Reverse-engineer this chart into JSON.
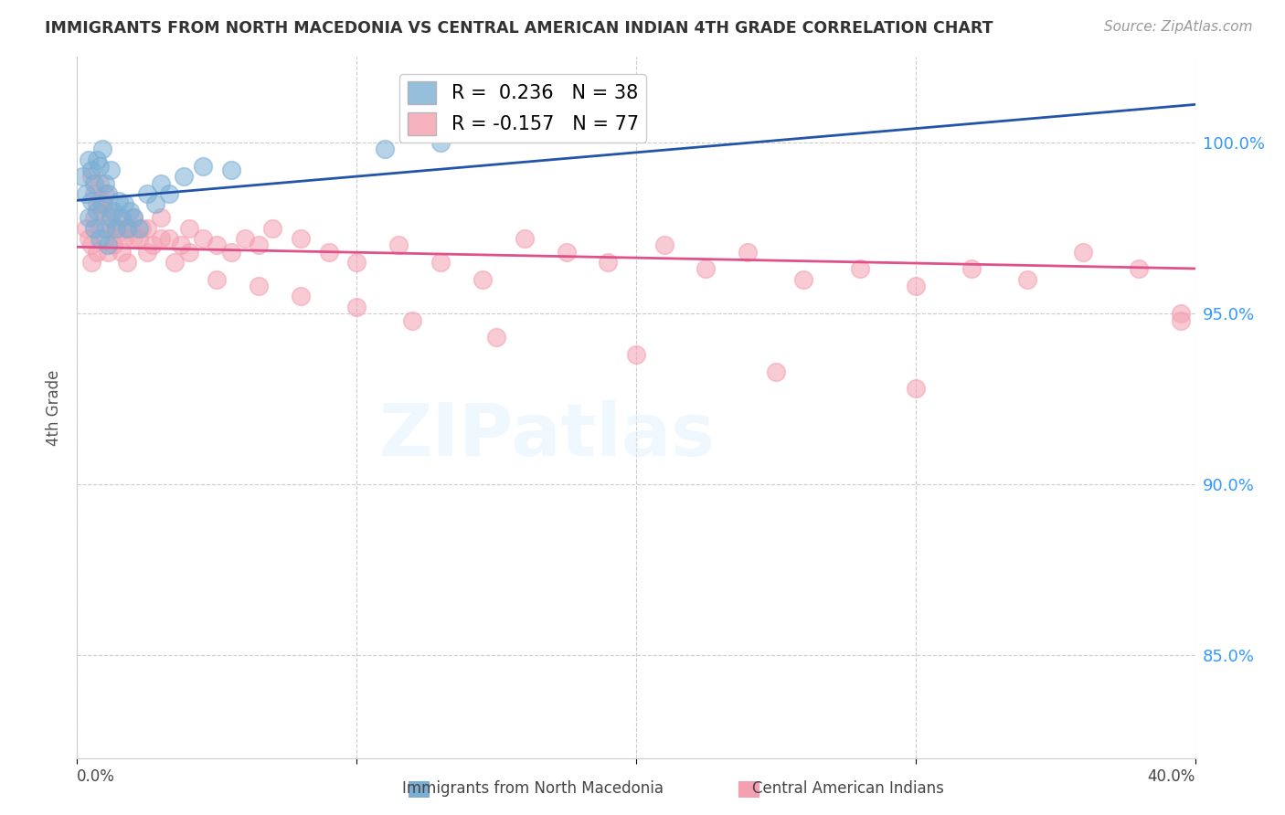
{
  "title": "IMMIGRANTS FROM NORTH MACEDONIA VS CENTRAL AMERICAN INDIAN 4TH GRADE CORRELATION CHART",
  "source": "Source: ZipAtlas.com",
  "ylabel": "4th Grade",
  "ytick_values": [
    1.0,
    0.95,
    0.9,
    0.85
  ],
  "xlim": [
    0.0,
    0.4
  ],
  "ylim": [
    0.82,
    1.025
  ],
  "series1_color": "#7bafd4",
  "series2_color": "#f4a0b0",
  "trendline1_color": "#2255aa",
  "trendline2_color": "#e0508a",
  "series1_R": 0.236,
  "series2_R": -0.157,
  "grid_color": "#cccccc",
  "watermark_text": "ZIPatlas",
  "legend_label1": "R =  0.236   N = 38",
  "legend_label2": "R = -0.157   N = 77",
  "series1_x": [
    0.002,
    0.003,
    0.004,
    0.004,
    0.005,
    0.005,
    0.006,
    0.006,
    0.007,
    0.007,
    0.008,
    0.008,
    0.009,
    0.009,
    0.01,
    0.01,
    0.011,
    0.011,
    0.012,
    0.012,
    0.013,
    0.014,
    0.015,
    0.016,
    0.017,
    0.018,
    0.019,
    0.02,
    0.022,
    0.025,
    0.028,
    0.03,
    0.033,
    0.038,
    0.045,
    0.055,
    0.11,
    0.13
  ],
  "series1_y": [
    0.99,
    0.985,
    0.995,
    0.978,
    0.992,
    0.983,
    0.988,
    0.975,
    0.995,
    0.98,
    0.993,
    0.972,
    0.998,
    0.982,
    0.988,
    0.975,
    0.985,
    0.97,
    0.992,
    0.978,
    0.98,
    0.975,
    0.983,
    0.978,
    0.982,
    0.975,
    0.98,
    0.978,
    0.975,
    0.985,
    0.982,
    0.988,
    0.985,
    0.99,
    0.993,
    0.992,
    0.998,
    1.0
  ],
  "series2_x": [
    0.003,
    0.004,
    0.005,
    0.005,
    0.006,
    0.007,
    0.008,
    0.009,
    0.01,
    0.011,
    0.012,
    0.013,
    0.014,
    0.015,
    0.016,
    0.017,
    0.018,
    0.019,
    0.02,
    0.022,
    0.023,
    0.025,
    0.027,
    0.03,
    0.033,
    0.037,
    0.04,
    0.045,
    0.05,
    0.055,
    0.06,
    0.065,
    0.07,
    0.08,
    0.09,
    0.1,
    0.115,
    0.13,
    0.145,
    0.16,
    0.175,
    0.19,
    0.21,
    0.225,
    0.24,
    0.26,
    0.28,
    0.3,
    0.32,
    0.34,
    0.36,
    0.38,
    0.395,
    0.005,
    0.006,
    0.007,
    0.008,
    0.009,
    0.01,
    0.012,
    0.015,
    0.018,
    0.02,
    0.025,
    0.03,
    0.035,
    0.04,
    0.05,
    0.065,
    0.08,
    0.1,
    0.12,
    0.15,
    0.2,
    0.25,
    0.3,
    0.395
  ],
  "series2_y": [
    0.975,
    0.972,
    0.97,
    0.965,
    0.978,
    0.968,
    0.975,
    0.98,
    0.972,
    0.968,
    0.975,
    0.97,
    0.973,
    0.975,
    0.968,
    0.972,
    0.965,
    0.975,
    0.978,
    0.972,
    0.975,
    0.975,
    0.97,
    0.978,
    0.972,
    0.97,
    0.975,
    0.972,
    0.97,
    0.968,
    0.972,
    0.97,
    0.975,
    0.972,
    0.968,
    0.965,
    0.97,
    0.965,
    0.96,
    0.972,
    0.968,
    0.965,
    0.97,
    0.963,
    0.968,
    0.96,
    0.963,
    0.958,
    0.963,
    0.96,
    0.968,
    0.963,
    0.95,
    0.99,
    0.985,
    0.982,
    0.988,
    0.983,
    0.985,
    0.98,
    0.978,
    0.975,
    0.972,
    0.968,
    0.972,
    0.965,
    0.968,
    0.96,
    0.958,
    0.955,
    0.952,
    0.948,
    0.943,
    0.938,
    0.933,
    0.928,
    0.948
  ]
}
